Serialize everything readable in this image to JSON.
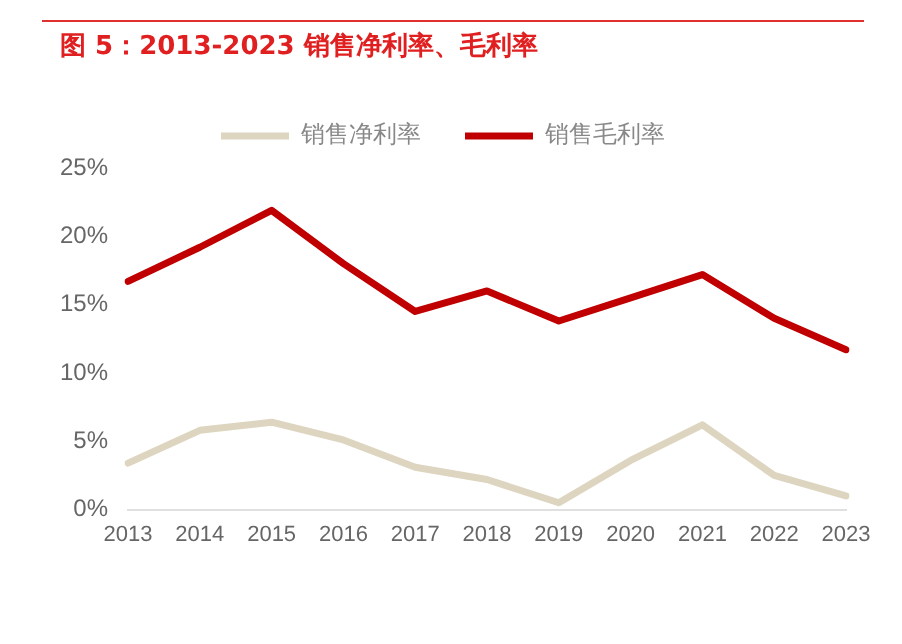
{
  "chart_data": {
    "type": "line",
    "title": "图 5：2013-2023 销售净利率、毛利率",
    "categories": [
      "2013",
      "2014",
      "2015",
      "2016",
      "2017",
      "2018",
      "2019",
      "2020",
      "2021",
      "2022",
      "2023"
    ],
    "series": [
      {
        "name": "销售净利率",
        "color": "#ddd5c0",
        "values": [
          3.4,
          5.8,
          6.4,
          5.1,
          3.1,
          2.2,
          0.5,
          3.6,
          6.2,
          2.5,
          1.0
        ]
      },
      {
        "name": "销售毛利率",
        "color": "#c00000",
        "values": [
          16.7,
          19.2,
          21.9,
          18.0,
          14.5,
          16.0,
          13.8,
          15.5,
          17.2,
          14.0,
          11.7
        ]
      }
    ],
    "ylim": [
      0,
      25
    ],
    "yticks": [
      {
        "value": 0,
        "label": "0%"
      },
      {
        "value": 5,
        "label": "5%"
      },
      {
        "value": 10,
        "label": "10%"
      },
      {
        "value": 15,
        "label": "15%"
      },
      {
        "value": 20,
        "label": "20%"
      },
      {
        "value": 25,
        "label": "25%"
      }
    ],
    "grid": false,
    "legend": "top",
    "marker": "none",
    "line_style": "solid"
  }
}
